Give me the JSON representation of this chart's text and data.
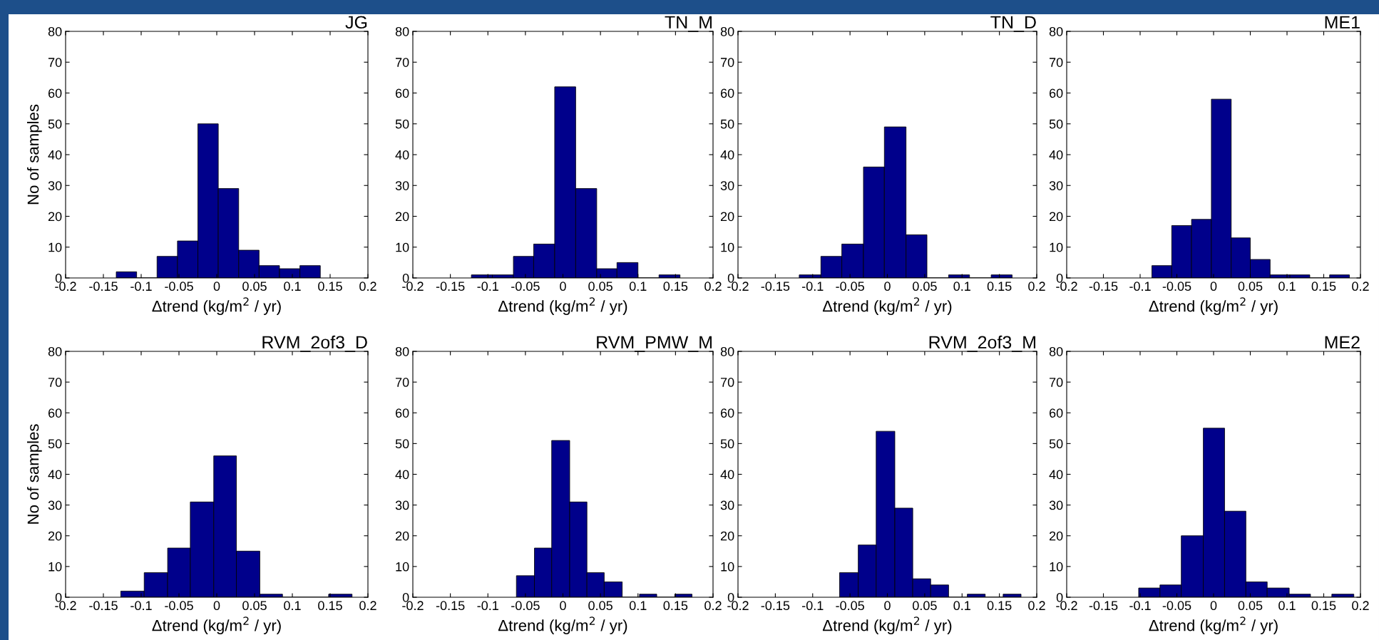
{
  "chart_data": [
    {
      "type": "histogram",
      "title": "JG",
      "xlabel": "Δtrend (kg/m$^{2}$ / yr)",
      "ylabel": "No of samples",
      "color": "#00008b",
      "xlim": [
        -0.2,
        0.2
      ],
      "ylim": [
        0,
        80
      ],
      "xticks": [
        -0.2,
        -0.15,
        -0.1,
        -0.05,
        0,
        0.05,
        0.1,
        0.15,
        0.2
      ],
      "yticks": [
        0,
        10,
        20,
        30,
        40,
        50,
        60,
        70,
        80
      ],
      "bins": [
        -0.133,
        -0.106,
        -0.079,
        -0.052,
        -0.025,
        0.002,
        0.029,
        0.056,
        0.083,
        0.11,
        0.137
      ],
      "values": [
        2,
        0,
        7,
        12,
        50,
        29,
        9,
        4,
        3,
        4
      ]
    },
    {
      "type": "histogram",
      "title": "TN_M",
      "xlabel": "Δtrend (kg/m$^{2}$ / yr)",
      "color": "#00008b",
      "xlim": [
        -0.2,
        0.2
      ],
      "ylim": [
        0,
        80
      ],
      "xticks": [
        -0.2,
        -0.15,
        -0.1,
        -0.05,
        0,
        0.05,
        0.1,
        0.15,
        0.2
      ],
      "yticks": [
        0,
        10,
        20,
        30,
        40,
        50,
        60,
        70,
        80
      ],
      "bins": [
        -0.122,
        -0.094,
        -0.066,
        -0.039,
        -0.011,
        0.017,
        0.045,
        0.072,
        0.1,
        0.128,
        0.156
      ],
      "values": [
        1,
        1,
        7,
        11,
        62,
        29,
        3,
        5,
        0,
        1
      ]
    },
    {
      "type": "histogram",
      "title": "TN_D",
      "xlabel": "Δtrend (kg/m$^{2}$ / yr)",
      "color": "#00008b",
      "xlim": [
        -0.2,
        0.2
      ],
      "ylim": [
        0,
        80
      ],
      "xticks": [
        -0.2,
        -0.15,
        -0.1,
        -0.05,
        0,
        0.05,
        0.1,
        0.15,
        0.2
      ],
      "yticks": [
        0,
        10,
        20,
        30,
        40,
        50,
        60,
        70,
        80
      ],
      "bins": [
        -0.118,
        -0.089,
        -0.061,
        -0.032,
        -0.004,
        0.025,
        0.053,
        0.082,
        0.11,
        0.139,
        0.167
      ],
      "values": [
        1,
        7,
        11,
        36,
        49,
        14,
        0,
        1,
        0,
        1
      ]
    },
    {
      "type": "histogram",
      "title": "ME1",
      "xlabel": "Δtrend (kg/m$^{2}$ / yr)",
      "color": "#00008b",
      "xlim": [
        -0.2,
        0.2
      ],
      "ylim": [
        0,
        80
      ],
      "xticks": [
        -0.2,
        -0.15,
        -0.1,
        -0.05,
        0,
        0.05,
        0.1,
        0.15,
        0.2
      ],
      "yticks": [
        0,
        10,
        20,
        30,
        40,
        50,
        60,
        70,
        80
      ],
      "bins": [
        -0.084,
        -0.057,
        -0.03,
        -0.003,
        0.024,
        0.05,
        0.077,
        0.104,
        0.131,
        0.158,
        0.185
      ],
      "values": [
        4,
        17,
        19,
        58,
        13,
        6,
        1,
        1,
        0,
        1
      ]
    },
    {
      "type": "histogram",
      "title": "RVM_2of3_D",
      "xlabel": "Δtrend (kg/m$^{2}$ / yr)",
      "ylabel": "No of samples",
      "color": "#00008b",
      "xlim": [
        -0.2,
        0.2
      ],
      "ylim": [
        0,
        80
      ],
      "xticks": [
        -0.2,
        -0.15,
        -0.1,
        -0.05,
        0,
        0.05,
        0.1,
        0.15,
        0.2
      ],
      "yticks": [
        0,
        10,
        20,
        30,
        40,
        50,
        60,
        70,
        80
      ],
      "bins": [
        -0.127,
        -0.096,
        -0.065,
        -0.035,
        -0.004,
        0.026,
        0.057,
        0.087,
        0.148,
        0.179
      ],
      "values": [
        2,
        8,
        16,
        31,
        46,
        15,
        1,
        0,
        1
      ]
    },
    {
      "type": "histogram",
      "title": "RVM_PMW_M",
      "xlabel": "Δtrend (kg/m$^{2}$ / yr)",
      "color": "#00008b",
      "xlim": [
        -0.2,
        0.2
      ],
      "ylim": [
        0,
        80
      ],
      "xticks": [
        -0.2,
        -0.15,
        -0.1,
        -0.05,
        0,
        0.05,
        0.1,
        0.15,
        0.2
      ],
      "yticks": [
        0,
        10,
        20,
        30,
        40,
        50,
        60,
        70,
        80
      ],
      "bins": [
        -0.062,
        -0.038,
        -0.015,
        0.009,
        0.032,
        0.055,
        0.079,
        0.102,
        0.125,
        0.149,
        0.172
      ],
      "values": [
        7,
        16,
        51,
        31,
        8,
        5,
        0,
        1,
        0,
        1
      ]
    },
    {
      "type": "histogram",
      "title": "RVM_2of3_M",
      "xlabel": "Δtrend (kg/m$^{2}$ / yr)",
      "color": "#00008b",
      "xlim": [
        -0.2,
        0.2
      ],
      "ylim": [
        0,
        80
      ],
      "xticks": [
        -0.2,
        -0.15,
        -0.1,
        -0.05,
        0,
        0.05,
        0.1,
        0.15,
        0.2
      ],
      "yticks": [
        0,
        10,
        20,
        30,
        40,
        50,
        60,
        70,
        80
      ],
      "bins": [
        -0.064,
        -0.039,
        -0.015,
        0.01,
        0.034,
        0.058,
        0.082,
        0.107,
        0.131,
        0.155,
        0.179
      ],
      "values": [
        8,
        17,
        54,
        29,
        6,
        4,
        0,
        1,
        0,
        1
      ]
    },
    {
      "type": "histogram",
      "title": "ME2",
      "xlabel": "Δtrend (kg/m$^{2}$ / yr)",
      "color": "#00008b",
      "xlim": [
        -0.2,
        0.2
      ],
      "ylim": [
        0,
        80
      ],
      "xticks": [
        -0.2,
        -0.15,
        -0.1,
        -0.05,
        0,
        0.05,
        0.1,
        0.15,
        0.2
      ],
      "yticks": [
        0,
        10,
        20,
        30,
        40,
        50,
        60,
        70,
        80
      ],
      "bins": [
        -0.102,
        -0.073,
        -0.044,
        -0.014,
        0.015,
        0.044,
        0.073,
        0.103,
        0.132,
        0.161,
        0.191
      ],
      "values": [
        3,
        4,
        20,
        55,
        28,
        5,
        3,
        1,
        0,
        1
      ]
    }
  ]
}
